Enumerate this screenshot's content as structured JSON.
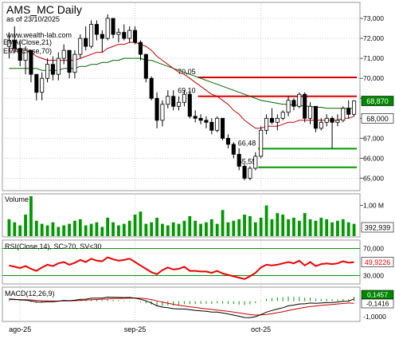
{
  "header": {
    "title": "AMS_MC Daily",
    "subtitle": "as of 23/10/2025",
    "website": "www.wealth-lab.com",
    "ema21_label": "EMA(Close,21)",
    "ema70_label": "EMA(Close,70)"
  },
  "colors": {
    "up_candle": "#ffffff",
    "down_candle": "#000000",
    "ema21": "#cc0000",
    "ema70": "#006600",
    "resistance": "#dd0000",
    "support": "#009900",
    "volume": "#009900",
    "rsi": "#ee0000",
    "rsi_band": "#009900",
    "macd_line": "#000000",
    "macd_signal": "#cc0000",
    "macd_hist": "#009900",
    "price_badge": "#008800"
  },
  "chart_data": [
    {
      "type": "candlestick",
      "name": "price",
      "ylim": [
        64.5,
        73.6
      ],
      "yticks": [
        "65,000",
        "66,000",
        "67,000",
        "68,000",
        "69,000",
        "70,000",
        "71,000",
        "72,000",
        "73,000"
      ],
      "ytick_values": [
        65,
        66,
        67,
        68,
        69,
        70,
        71,
        72,
        73
      ],
      "x_labels": [
        "ago-25",
        "sep-25",
        "oct-25"
      ],
      "x_label_index": [
        2,
        23,
        46
      ],
      "ohlc": [
        [
          71.6,
          72.3,
          71.0,
          71.9
        ],
        [
          71.9,
          72.6,
          71.3,
          71.5
        ],
        [
          71.5,
          71.9,
          70.6,
          70.9
        ],
        [
          70.9,
          71.6,
          70.2,
          71.4
        ],
        [
          71.4,
          71.4,
          69.8,
          70.2
        ],
        [
          70.2,
          70.2,
          68.9,
          69.3
        ],
        [
          69.3,
          70.3,
          68.9,
          70.0
        ],
        [
          70.0,
          71.0,
          69.8,
          70.7
        ],
        [
          70.7,
          71.1,
          69.9,
          70.2
        ],
        [
          70.2,
          71.3,
          69.9,
          71.0
        ],
        [
          71.0,
          71.7,
          70.7,
          71.4
        ],
        [
          71.4,
          71.4,
          70.0,
          70.3
        ],
        [
          70.3,
          71.4,
          70.0,
          71.2
        ],
        [
          71.2,
          72.2,
          71.0,
          72.0
        ],
        [
          72.0,
          72.6,
          71.4,
          71.6
        ],
        [
          71.6,
          72.9,
          71.5,
          72.7
        ],
        [
          72.7,
          72.9,
          71.9,
          72.2
        ],
        [
          72.2,
          72.4,
          71.3,
          72.0
        ],
        [
          72.0,
          73.2,
          71.9,
          73.0
        ],
        [
          73.0,
          73.0,
          72.0,
          72.2
        ],
        [
          72.2,
          72.5,
          71.8,
          72.3
        ],
        [
          72.3,
          72.7,
          71.9,
          72.0
        ],
        [
          72.0,
          72.6,
          71.8,
          72.4
        ],
        [
          72.4,
          72.6,
          71.7,
          71.8
        ],
        [
          71.8,
          71.9,
          70.9,
          71.2
        ],
        [
          71.2,
          71.2,
          69.8,
          70.0
        ],
        [
          70.0,
          70.1,
          68.9,
          69.0
        ],
        [
          69.0,
          69.3,
          67.5,
          67.9
        ],
        [
          67.9,
          68.9,
          67.6,
          68.7
        ],
        [
          68.7,
          69.4,
          68.5,
          69.1
        ],
        [
          69.1,
          69.4,
          68.4,
          68.6
        ],
        [
          68.6,
          69.1,
          68.4,
          68.8
        ],
        [
          68.8,
          69.4,
          68.6,
          69.2
        ],
        [
          69.2,
          69.4,
          68.0,
          68.1
        ],
        [
          68.1,
          68.4,
          67.8,
          68.0
        ],
        [
          68.0,
          68.2,
          67.7,
          67.9
        ],
        [
          67.9,
          68.1,
          67.5,
          67.8
        ],
        [
          67.8,
          68.0,
          67.2,
          67.4
        ],
        [
          67.4,
          68.1,
          67.3,
          68.0
        ],
        [
          68.0,
          68.0,
          66.9,
          67.0
        ],
        [
          67.0,
          67.2,
          66.5,
          66.7
        ],
        [
          66.7,
          66.8,
          66.0,
          66.2
        ],
        [
          66.2,
          66.5,
          65.4,
          65.6
        ],
        [
          65.6,
          65.7,
          64.9,
          65.0
        ],
        [
          65.0,
          65.6,
          64.9,
          65.5
        ],
        [
          65.5,
          66.3,
          65.4,
          66.1
        ],
        [
          66.1,
          67.6,
          66.0,
          67.4
        ],
        [
          67.4,
          68.2,
          67.2,
          68.0
        ],
        [
          68.0,
          68.5,
          67.7,
          67.8
        ],
        [
          67.8,
          68.2,
          67.4,
          68.0
        ],
        [
          68.0,
          68.4,
          67.9,
          68.3
        ],
        [
          68.3,
          69.1,
          68.1,
          68.9
        ],
        [
          68.9,
          69.0,
          68.4,
          68.6
        ],
        [
          68.6,
          69.3,
          68.5,
          69.2
        ],
        [
          69.2,
          69.3,
          67.8,
          68.0
        ],
        [
          68.0,
          68.8,
          67.7,
          68.6
        ],
        [
          68.6,
          68.6,
          67.3,
          67.5
        ],
        [
          67.5,
          68.0,
          67.4,
          67.8
        ],
        [
          67.8,
          68.2,
          67.6,
          68.0
        ],
        [
          68.0,
          68.1,
          66.5,
          67.8
        ],
        [
          67.8,
          68.2,
          67.6,
          67.9
        ],
        [
          67.9,
          68.6,
          67.8,
          68.5
        ],
        [
          68.5,
          68.9,
          68.0,
          68.2
        ],
        [
          68.2,
          68.9,
          68.1,
          68.87
        ]
      ],
      "ema21": [
        71.5,
        71.5,
        71.4,
        71.4,
        71.3,
        71.1,
        71.0,
        70.9,
        70.9,
        70.9,
        70.9,
        70.9,
        70.9,
        71.0,
        71.1,
        71.2,
        71.3,
        71.3,
        71.5,
        71.6,
        71.7,
        71.7,
        71.8,
        71.8,
        71.7,
        71.6,
        71.4,
        71.1,
        70.9,
        70.7,
        70.5,
        70.3,
        70.2,
        70.0,
        69.8,
        69.6,
        69.4,
        69.2,
        69.1,
        68.9,
        68.7,
        68.4,
        68.2,
        67.9,
        67.7,
        67.5,
        67.5,
        67.6,
        67.6,
        67.6,
        67.7,
        67.8,
        67.8,
        67.9,
        67.9,
        67.9,
        67.9,
        67.9,
        67.9,
        67.9,
        67.9,
        68.0,
        68.0,
        68.1
      ],
      "ema70": [
        70.5,
        70.5,
        70.5,
        70.5,
        70.5,
        70.5,
        70.4,
        70.4,
        70.4,
        70.4,
        70.5,
        70.5,
        70.5,
        70.6,
        70.6,
        70.7,
        70.7,
        70.8,
        70.8,
        70.9,
        70.9,
        71.0,
        71.0,
        71.0,
        71.0,
        70.9,
        70.9,
        70.8,
        70.7,
        70.6,
        70.5,
        70.4,
        70.3,
        70.2,
        70.1,
        70.0,
        69.9,
        69.8,
        69.7,
        69.6,
        69.5,
        69.4,
        69.3,
        69.2,
        69.1,
        69.0,
        68.9,
        68.85,
        68.8,
        68.75,
        68.7,
        68.7,
        68.65,
        68.65,
        68.6,
        68.6,
        68.55,
        68.55,
        68.5,
        68.5,
        68.5,
        68.5,
        68.5,
        68.5
      ],
      "levels": [
        {
          "label": "70,05",
          "value": 70.05,
          "kind": "resistance",
          "from": 35,
          "to": 63
        },
        {
          "label": "69,10",
          "value": 69.1,
          "kind": "resistance",
          "from": 35,
          "to": 63
        },
        {
          "label": "66,48",
          "value": 66.48,
          "kind": "support",
          "from": 46,
          "to": 63
        },
        {
          "label": "65,55",
          "value": 65.55,
          "kind": "support",
          "from": 46,
          "to": 63
        }
      ],
      "last_price_label": "68,870",
      "last_price": 68.87,
      "ema21_last_label": "68,000",
      "ema21_last": 68.0
    },
    {
      "type": "bar",
      "name": "volume",
      "title": "Volume",
      "ylim": [
        0,
        1.3
      ],
      "ytick_label": "1,00 M",
      "ytick_value": 1.0,
      "last_label": "392,939",
      "last_value": 0.39,
      "values": [
        0.55,
        0.45,
        0.35,
        0.7,
        1.3,
        0.5,
        0.4,
        0.35,
        0.45,
        0.3,
        0.35,
        0.4,
        0.5,
        0.55,
        0.35,
        0.4,
        0.45,
        0.3,
        0.6,
        0.45,
        0.35,
        0.4,
        0.5,
        0.7,
        0.8,
        0.4,
        0.45,
        0.6,
        0.4,
        0.35,
        0.45,
        0.4,
        0.5,
        0.65,
        0.5,
        0.4,
        0.45,
        0.55,
        0.4,
        0.85,
        0.45,
        0.5,
        0.55,
        0.7,
        0.65,
        0.45,
        0.6,
        1.0,
        0.55,
        0.75,
        0.7,
        0.55,
        0.6,
        0.5,
        0.75,
        0.55,
        0.5,
        0.6,
        0.55,
        0.45,
        0.5,
        0.55,
        0.45,
        0.4
      ]
    },
    {
      "type": "line",
      "name": "rsi",
      "title": "RSI(Close,14), SC>70, SV<30",
      "ylim": [
        20,
        80
      ],
      "band_upper": 70,
      "band_lower": 30,
      "ytick_labels": [
        "70,000",
        "30,000"
      ],
      "last_label": "49,9226",
      "last_value": 49.92,
      "values": [
        45,
        43,
        41,
        44,
        40,
        37,
        42,
        46,
        44,
        48,
        50,
        46,
        49,
        53,
        50,
        55,
        52,
        51,
        57,
        54,
        52,
        53,
        55,
        50,
        45,
        40,
        35,
        32,
        38,
        42,
        39,
        40,
        43,
        37,
        37,
        36,
        36,
        34,
        37,
        33,
        31,
        29,
        27,
        25,
        29,
        34,
        42,
        46,
        45,
        46,
        48,
        50,
        48,
        52,
        45,
        50,
        44,
        47,
        48,
        47,
        48,
        51,
        49,
        49.9
      ]
    },
    {
      "type": "line",
      "name": "macd",
      "title": "MACD(12,26,9)",
      "ylim": [
        -1.2,
        0.8
      ],
      "ytick_label": "-1,0000",
      "ytick_value": -1.0,
      "macd_last_label": "0,1457",
      "signal_last_label": "-0,1416",
      "macd": [
        0.15,
        0.12,
        0.08,
        0.07,
        0.02,
        -0.05,
        -0.06,
        -0.03,
        -0.03,
        0.0,
        0.05,
        0.03,
        0.06,
        0.12,
        0.13,
        0.19,
        0.2,
        0.2,
        0.26,
        0.25,
        0.24,
        0.23,
        0.24,
        0.2,
        0.13,
        0.02,
        -0.12,
        -0.3,
        -0.38,
        -0.42,
        -0.48,
        -0.5,
        -0.5,
        -0.55,
        -0.59,
        -0.62,
        -0.65,
        -0.7,
        -0.7,
        -0.76,
        -0.82,
        -0.89,
        -0.97,
        -1.05,
        -1.06,
        -1.0,
        -0.86,
        -0.7,
        -0.6,
        -0.5,
        -0.42,
        -0.3,
        -0.25,
        -0.18,
        -0.17,
        -0.12,
        -0.14,
        -0.12,
        -0.09,
        -0.08,
        -0.06,
        -0.01,
        0.0,
        0.15
      ],
      "signal": [
        0.1,
        0.1,
        0.1,
        0.09,
        0.08,
        0.05,
        0.03,
        0.02,
        0.01,
        0.01,
        0.02,
        0.02,
        0.03,
        0.05,
        0.07,
        0.09,
        0.11,
        0.13,
        0.15,
        0.17,
        0.18,
        0.19,
        0.2,
        0.2,
        0.19,
        0.16,
        0.1,
        0.02,
        -0.06,
        -0.13,
        -0.2,
        -0.26,
        -0.31,
        -0.36,
        -0.4,
        -0.45,
        -0.49,
        -0.53,
        -0.57,
        -0.61,
        -0.65,
        -0.7,
        -0.75,
        -0.81,
        -0.86,
        -0.89,
        -0.88,
        -0.85,
        -0.8,
        -0.74,
        -0.68,
        -0.6,
        -0.53,
        -0.46,
        -0.4,
        -0.35,
        -0.31,
        -0.27,
        -0.24,
        -0.21,
        -0.18,
        -0.15,
        -0.12,
        -0.14
      ]
    }
  ]
}
